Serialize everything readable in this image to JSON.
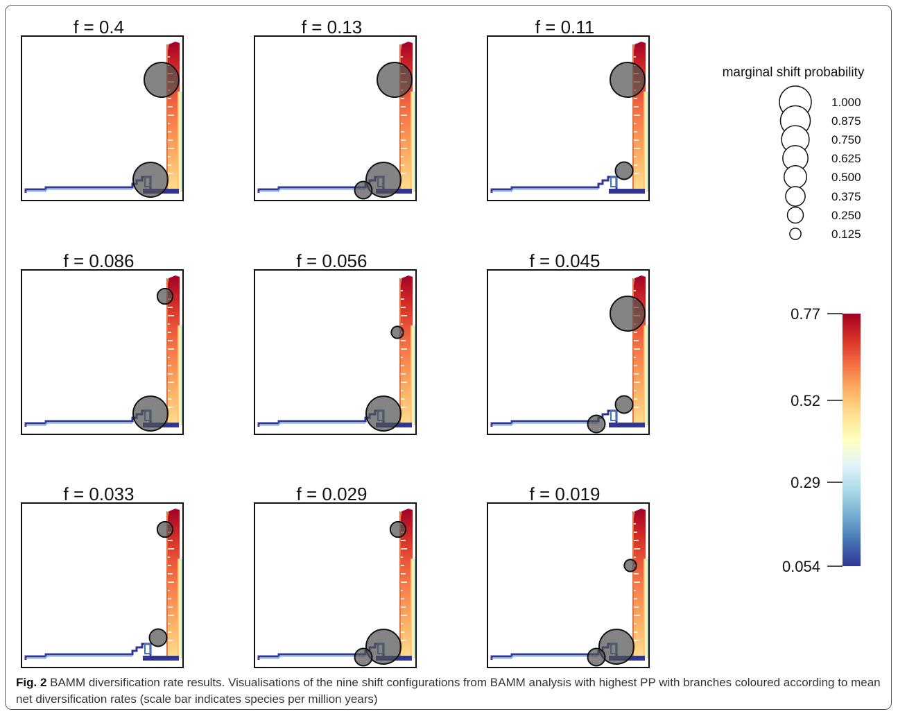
{
  "panels": [
    {
      "title": "f = 0.4",
      "shifts": [
        {
          "node": "top",
          "prob": 1.0
        },
        {
          "node": "base",
          "prob": 1.0
        }
      ]
    },
    {
      "title": "f = 0.13",
      "shifts": [
        {
          "node": "top",
          "prob": 1.0
        },
        {
          "node": "base",
          "prob": 1.0
        },
        {
          "node": "stem",
          "prob": 0.25
        }
      ]
    },
    {
      "title": "f = 0.11",
      "shifts": [
        {
          "node": "top",
          "prob": 1.0
        },
        {
          "node": "mid",
          "prob": 0.25
        }
      ]
    },
    {
      "title": "f = 0.086",
      "shifts": [
        {
          "node": "top2",
          "prob": 0.2
        },
        {
          "node": "base",
          "prob": 1.0
        }
      ]
    },
    {
      "title": "f = 0.056",
      "shifts": [
        {
          "node": "upper",
          "prob": 0.12
        },
        {
          "node": "base",
          "prob": 1.0
        }
      ]
    },
    {
      "title": "f = 0.045",
      "shifts": [
        {
          "node": "top",
          "prob": 1.0
        },
        {
          "node": "mid",
          "prob": 0.25
        },
        {
          "node": "stem",
          "prob": 0.25
        }
      ]
    },
    {
      "title": "f = 0.033",
      "shifts": [
        {
          "node": "top2",
          "prob": 0.2
        },
        {
          "node": "mid",
          "prob": 0.25
        }
      ]
    },
    {
      "title": "f = 0.029",
      "shifts": [
        {
          "node": "top2",
          "prob": 0.2
        },
        {
          "node": "base",
          "prob": 1.0
        },
        {
          "node": "stem",
          "prob": 0.25
        }
      ]
    },
    {
      "title": "f = 0.019",
      "shifts": [
        {
          "node": "upper",
          "prob": 0.12
        },
        {
          "node": "base",
          "prob": 1.0
        },
        {
          "node": "stem",
          "prob": 0.25
        }
      ]
    }
  ],
  "legend": {
    "title": "marginal shift probability",
    "values": [
      "1.000",
      "0.875",
      "0.750",
      "0.625",
      "0.500",
      "0.375",
      "0.250",
      "0.125"
    ]
  },
  "colorbar": {
    "ticks": [
      "0.77",
      "0.52",
      "0.29",
      "0.054"
    ],
    "colors": [
      "#a50026",
      "#d73027",
      "#f46d43",
      "#fdae61",
      "#fee090",
      "#ffffbf",
      "#e0f3f8",
      "#abd9e9",
      "#74add1",
      "#4575b4",
      "#313695"
    ]
  },
  "caption": {
    "label": "Fig. 2",
    "text": " BAMM diversification rate results. Visualisations of the nine shift configurations from BAMM analysis with highest PP with branches coloured according to mean net diversification rates (scale bar indicates species per million years)"
  }
}
